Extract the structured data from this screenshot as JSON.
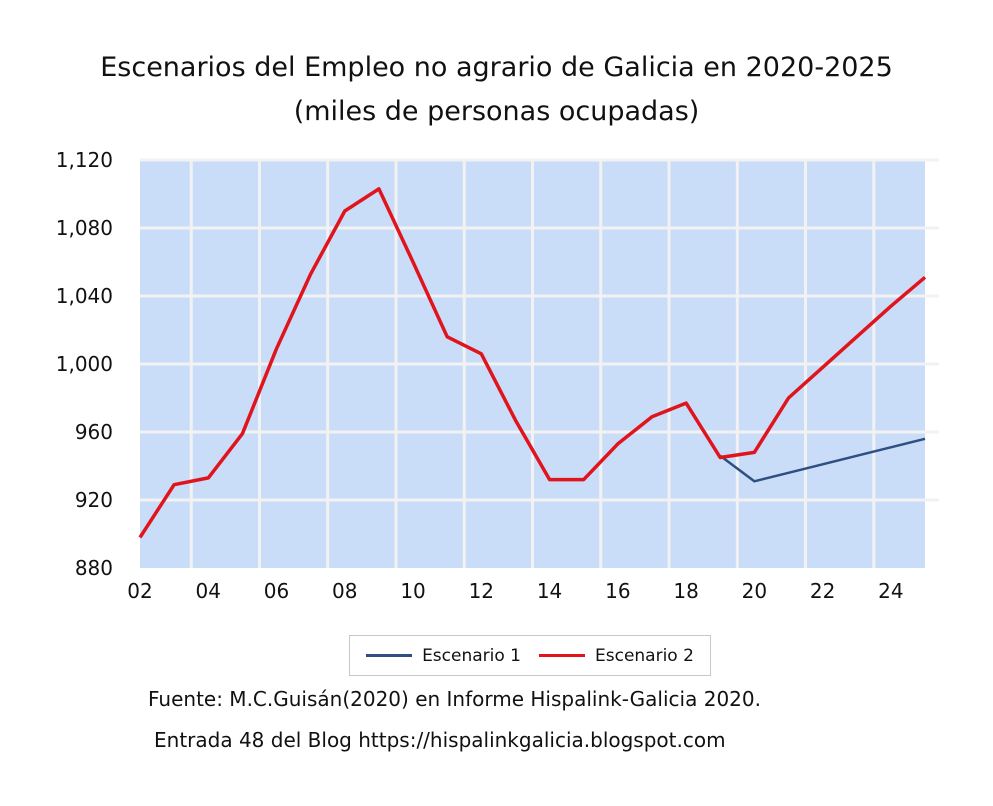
{
  "chart_data": {
    "type": "line",
    "title": "Escenarios del Empleo no agrario de Galicia en 2020-2025",
    "subtitle": "(miles de personas ocupadas)",
    "x": [
      2,
      3,
      4,
      5,
      6,
      7,
      8,
      9,
      10,
      11,
      12,
      13,
      14,
      15,
      16,
      17,
      18,
      19,
      20,
      21,
      22,
      23,
      24,
      25
    ],
    "x_tick_labels": [
      "02",
      "04",
      "06",
      "08",
      "10",
      "12",
      "14",
      "16",
      "18",
      "20",
      "22",
      "24"
    ],
    "x_tick_values": [
      2,
      4,
      6,
      8,
      10,
      12,
      14,
      16,
      18,
      20,
      22,
      24
    ],
    "y_tick_labels": [
      "880",
      "920",
      "960",
      "1,000",
      "1,040",
      "1,080",
      "1,120"
    ],
    "y_tick_values": [
      880,
      920,
      960,
      1000,
      1040,
      1080,
      1120
    ],
    "xlim": [
      2,
      25
    ],
    "ylim": [
      880,
      1120
    ],
    "grid": true,
    "legend_position": "bottom",
    "series": [
      {
        "name": "Escenario 1",
        "color": "#2f4f80",
        "x": [
          19,
          20,
          21,
          22,
          23,
          24,
          25
        ],
        "values": [
          946,
          931,
          936,
          941,
          946,
          951,
          956
        ]
      },
      {
        "name": "Escenario 2",
        "color": "#e0141c",
        "x": [
          2,
          3,
          4,
          5,
          6,
          7,
          8,
          9,
          10,
          11,
          12,
          13,
          14,
          15,
          16,
          17,
          18,
          19,
          20,
          21,
          22,
          23,
          24,
          25
        ],
        "values": [
          898,
          929,
          933,
          959,
          1009,
          1053,
          1090,
          1103,
          1060,
          1016,
          1006,
          967,
          932,
          932,
          953,
          969,
          977,
          945,
          948,
          980,
          998,
          1016,
          1034,
          1051
        ]
      }
    ],
    "plot_background": "#c9dcf8",
    "grid_color": "#f2f2f2"
  },
  "notes": {
    "source": "Fuente: M.C.Guisán(2020) en Informe Hispalink-Galicia 2020.",
    "blog": "Entrada 48 del Blog https://hispalinkgalicia.blogspot.com"
  }
}
